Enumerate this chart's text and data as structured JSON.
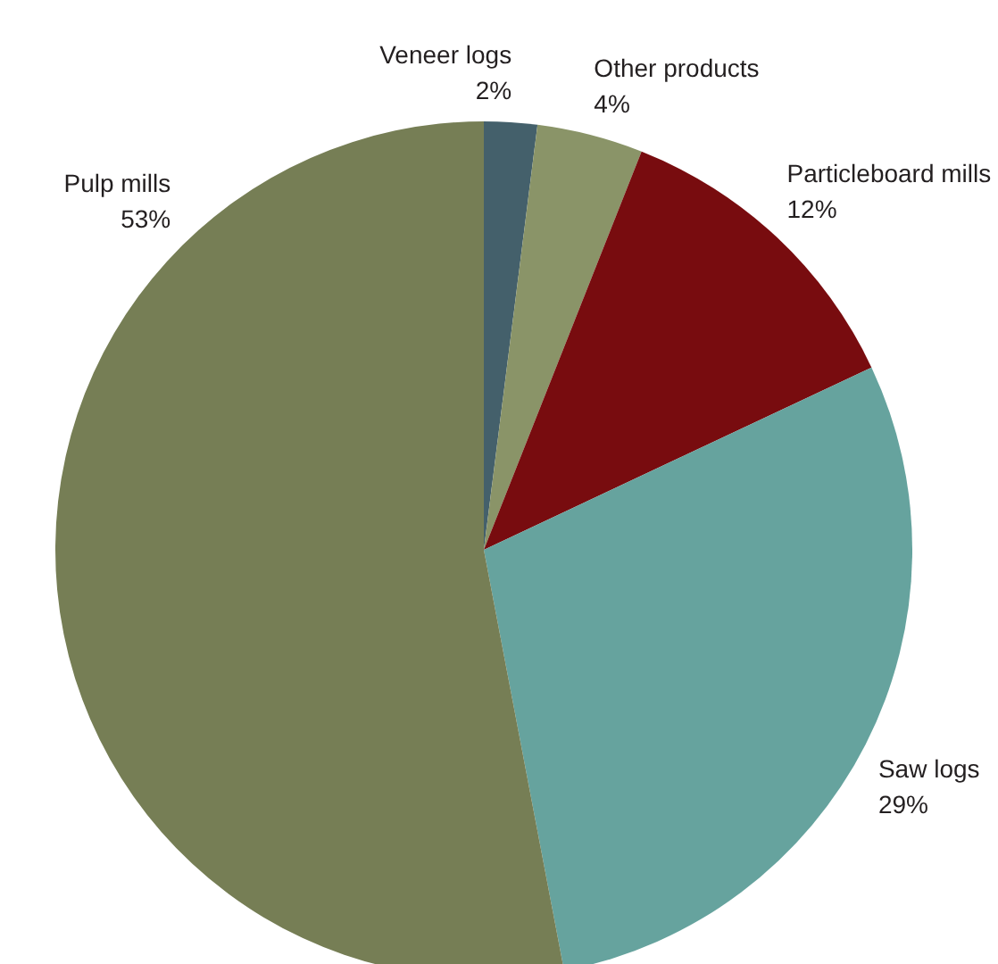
{
  "chart_data": {
    "type": "pie",
    "categories": [
      "Veneer logs",
      "Other products",
      "Particleboard mills",
      "Saw logs",
      "Pulp mills"
    ],
    "values": [
      2,
      4,
      12,
      29,
      53
    ],
    "value_labels": [
      "2%",
      "4%",
      "12%",
      "29%",
      "53%"
    ],
    "colors": [
      "#44606b",
      "#8a9468",
      "#780c0f",
      "#66a39e",
      "#767e55"
    ]
  }
}
